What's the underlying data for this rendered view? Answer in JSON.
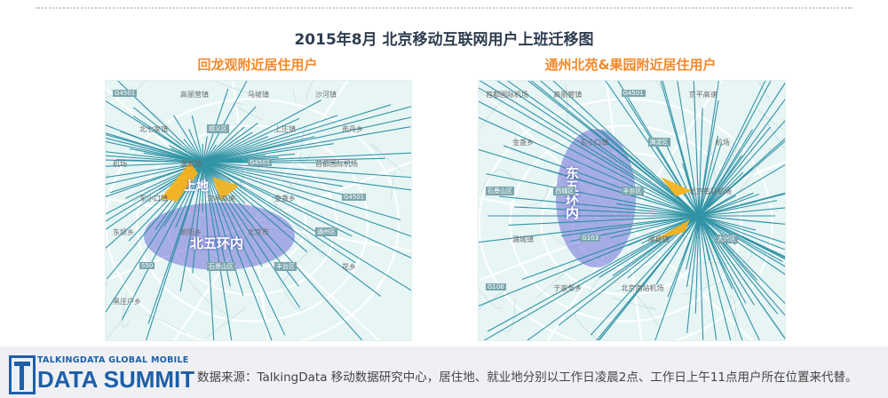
{
  "header": {
    "title": "2015年8月 北京移动互联网用户上班迁移图"
  },
  "left_panel": {
    "title": "回龙观附近居住用户",
    "overlay_labels": {
      "origin": "上地",
      "destination_region": "北五环内"
    },
    "map_labels": [
      "G4501",
      "高丽营镇",
      "马坡镇",
      "沙河镇",
      "北七家镇",
      "顺义区",
      "上庄镇",
      "燕丹乡",
      "机场",
      "温泉镇",
      "G4501",
      "首都国际机场",
      "东小口镇",
      "京承高速",
      "金盏乡",
      "G4501",
      "东坝乡",
      "朝阳乡",
      "北京市",
      "通州区",
      "S50",
      "石景山区",
      "丰台区",
      "花乡",
      "黑庄户乡"
    ]
  },
  "right_panel": {
    "title": "通州北苑&果园附近居住用户",
    "overlay_labels": {
      "origin_region": "东五环内"
    },
    "map_labels": [
      "首都国际机场",
      "高丽营镇",
      "G4501",
      "京平高速",
      "金盏乡",
      "东小口镇",
      "海淀区",
      "机场",
      "石景山区",
      "西城区",
      "丰台区",
      "北京南站机场",
      "潞城镇",
      "G103",
      "漷县镇",
      "大兴区",
      "G106",
      "于家务乡",
      "北京南站机场"
    ]
  },
  "footer": {
    "logo_top": "TALKINGDATA GLOBAL MOBILE",
    "logo_main": "DATA SUMMIT",
    "source": "数据来源：TalkingData 移动数据研究中心，居住地、就业地分别以工作日凌晨2点、工作日上午11点用户所在位置来代替。"
  },
  "colors": {
    "title": "#2e3d50",
    "panel_title": "#f2892b",
    "flow_line": "#1f8a9e",
    "arrow": "#f5b21b",
    "region": "#6f6fd6",
    "brand": "#1d5fa8"
  }
}
